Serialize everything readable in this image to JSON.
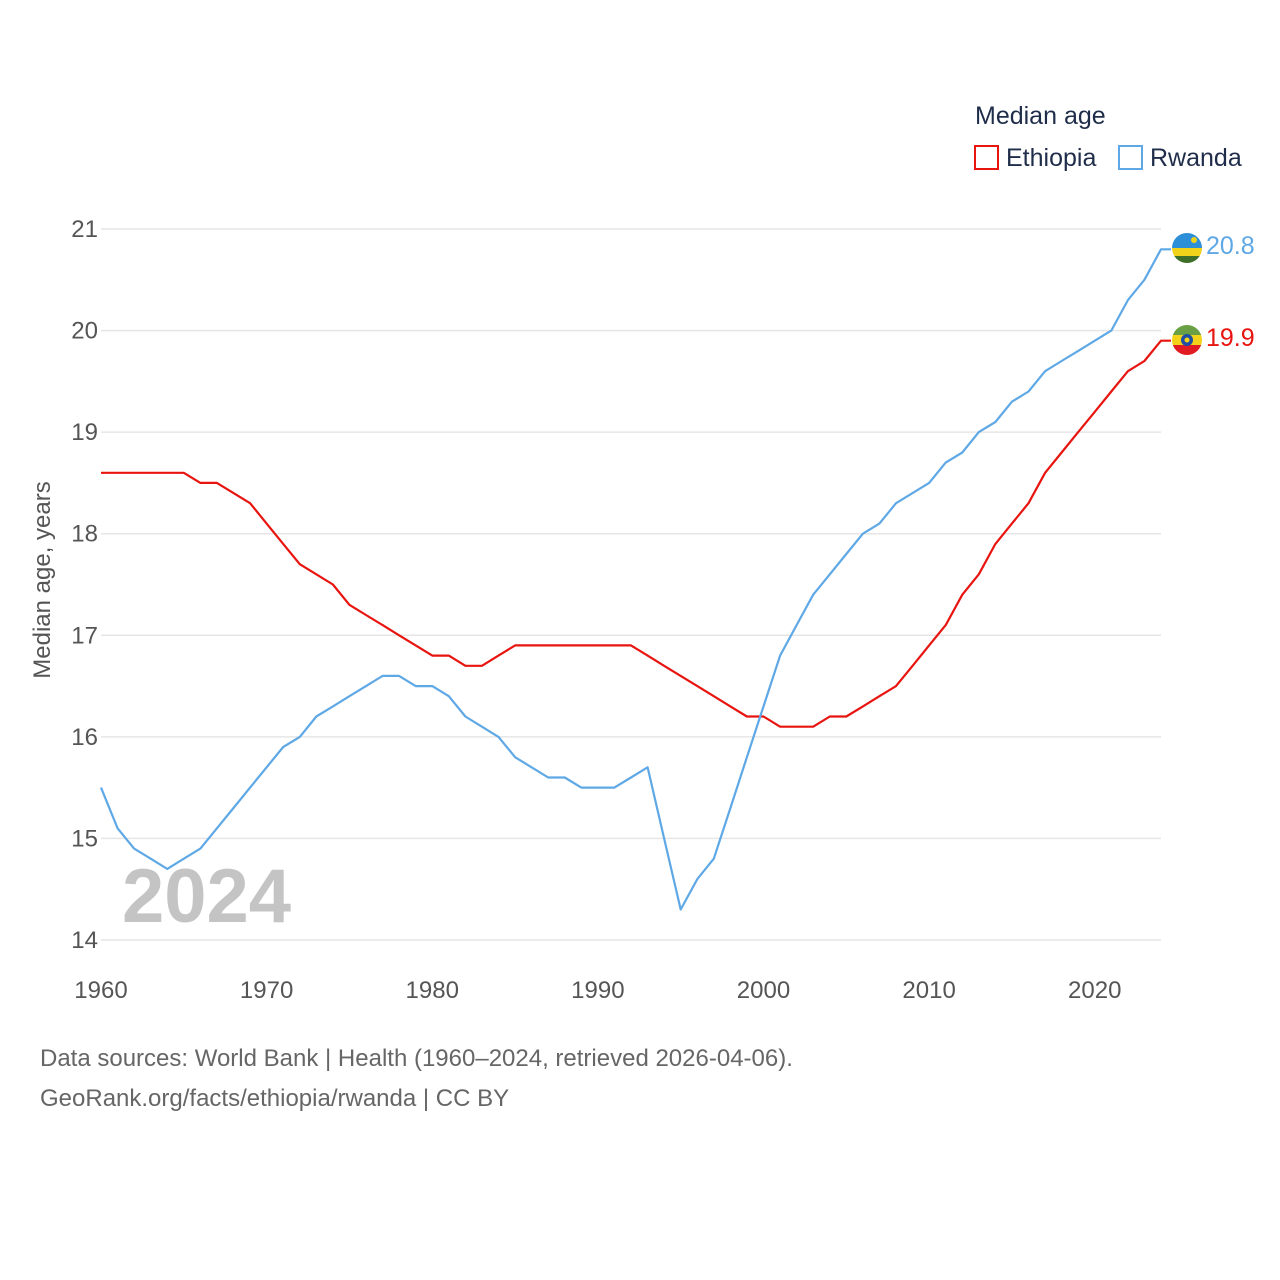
{
  "chart_data": {
    "type": "line",
    "legend_title": "Median age",
    "ylabel": "Median age, years",
    "xlabel": "",
    "xlim": [
      1960,
      2024
    ],
    "ylim": [
      14,
      21
    ],
    "x_ticks": [
      1960,
      1970,
      1980,
      1990,
      2000,
      2010,
      2020
    ],
    "y_ticks": [
      14,
      15,
      16,
      17,
      18,
      19,
      20,
      21
    ],
    "grid": true,
    "legend_position": "top-right",
    "current_year": "2024",
    "x": [
      1960,
      1961,
      1962,
      1963,
      1964,
      1965,
      1966,
      1967,
      1968,
      1969,
      1970,
      1971,
      1972,
      1973,
      1974,
      1975,
      1976,
      1977,
      1978,
      1979,
      1980,
      1981,
      1982,
      1983,
      1984,
      1985,
      1986,
      1987,
      1988,
      1989,
      1990,
      1991,
      1992,
      1993,
      1994,
      1995,
      1996,
      1997,
      1998,
      1999,
      2000,
      2001,
      2002,
      2003,
      2004,
      2005,
      2006,
      2007,
      2008,
      2009,
      2010,
      2011,
      2012,
      2013,
      2014,
      2015,
      2016,
      2017,
      2018,
      2019,
      2020,
      2021,
      2022,
      2023,
      2024
    ],
    "series": [
      {
        "name": "Ethiopia",
        "color": "#e8140f",
        "end_label": "19.9",
        "values": [
          18.6,
          18.6,
          18.6,
          18.6,
          18.6,
          18.6,
          18.5,
          18.5,
          18.4,
          18.3,
          18.1,
          17.9,
          17.7,
          17.6,
          17.5,
          17.3,
          17.2,
          17.1,
          17.0,
          16.9,
          16.8,
          16.8,
          16.7,
          16.7,
          16.8,
          16.9,
          16.9,
          16.9,
          16.9,
          16.9,
          16.9,
          16.9,
          16.9,
          16.8,
          16.7,
          16.6,
          16.5,
          16.4,
          16.3,
          16.2,
          16.2,
          16.1,
          16.1,
          16.1,
          16.2,
          16.2,
          16.3,
          16.4,
          16.5,
          16.7,
          16.9,
          17.1,
          17.4,
          17.6,
          17.9,
          18.1,
          18.3,
          18.6,
          18.8,
          19.0,
          19.2,
          19.4,
          19.6,
          19.7,
          19.9
        ]
      },
      {
        "name": "Rwanda",
        "color": "#5fa8e6",
        "end_label": "20.8",
        "values": [
          15.5,
          15.1,
          14.9,
          14.8,
          14.7,
          14.8,
          14.9,
          15.1,
          15.3,
          15.5,
          15.7,
          15.9,
          16.0,
          16.2,
          16.3,
          16.4,
          16.5,
          16.6,
          16.6,
          16.5,
          16.5,
          16.4,
          16.2,
          16.1,
          16.0,
          15.8,
          15.7,
          15.6,
          15.6,
          15.5,
          15.5,
          15.5,
          15.6,
          15.7,
          15.0,
          14.3,
          14.6,
          14.8,
          15.3,
          15.8,
          16.3,
          16.8,
          17.1,
          17.4,
          17.6,
          17.8,
          18.0,
          18.1,
          18.3,
          18.4,
          18.5,
          18.7,
          18.8,
          19.0,
          19.1,
          19.3,
          19.4,
          19.6,
          19.7,
          19.8,
          19.9,
          20.0,
          20.3,
          20.5,
          20.8
        ]
      }
    ]
  },
  "footer": {
    "source_line": "Data sources: World Bank | Health (1960–2024, retrieved 2026-04-06).",
    "credit_line": "GeoRank.org/facts/ethiopia/rwanda | CC BY"
  }
}
